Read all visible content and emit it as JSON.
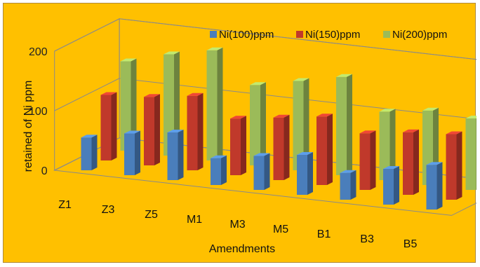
{
  "chart_data": {
    "type": "bar",
    "title": "",
    "xlabel": "Amendments",
    "ylabel": "retained of  Ni ppm",
    "ylim": [
      0,
      200
    ],
    "yticks": [
      "0",
      "100",
      "200"
    ],
    "categories": [
      "Z1",
      "Z3",
      "Z5",
      "M1",
      "M3",
      "M5",
      "B1",
      "B3",
      "B5"
    ],
    "series": [
      {
        "name": "Ni(100)ppm",
        "color": "#4a7ebb",
        "values": [
          55,
          70,
          80,
          45,
          57,
          67,
          45,
          60,
          75
        ]
      },
      {
        "name": "Ni(150)ppm",
        "color": "#c0392b",
        "values": [
          110,
          115,
          125,
          95,
          105,
          115,
          95,
          105,
          110
        ]
      },
      {
        "name": "Ni(200)ppm",
        "color": "#9bbb59",
        "values": [
          150,
          170,
          185,
          135,
          150,
          165,
          115,
          125,
          120
        ]
      }
    ],
    "legend_position": "top-right",
    "grid": true,
    "style": "3d-column"
  }
}
